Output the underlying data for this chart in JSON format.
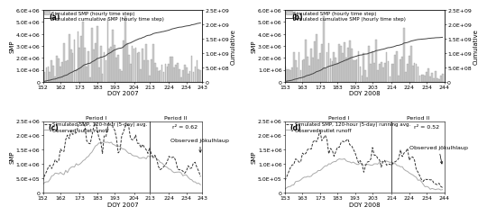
{
  "panel_a": {
    "label": "(a)",
    "doy_start": 152,
    "doy_end": 243,
    "xlabel": "DOY 2007",
    "ylim_left": [
      0,
      6000000.0
    ],
    "ylim_right": [
      0,
      2500000000.0
    ],
    "yticks_left": [
      0,
      1000000.0,
      2000000.0,
      3000000.0,
      4000000.0,
      5000000.0,
      6000000.0
    ],
    "yticks_right": [
      0,
      500000000.0,
      1000000000.0,
      1500000000.0,
      2000000000.0,
      2500000000.0
    ],
    "ytick_labels_right": [
      "0",
      "5.0E+08",
      "1.0E+09",
      "1.5E+09",
      "2.0E+09",
      "2.5E+09"
    ],
    "ytick_labels_left": [
      "0",
      "1.0E+06",
      "2.0E+06",
      "3.0E+06",
      "4.0E+06",
      "5.0E+06",
      "6.0E+06"
    ],
    "xticks": [
      152,
      162,
      173,
      183,
      193,
      204,
      213,
      224,
      234,
      243
    ],
    "bar_color": "#cccccc",
    "bar_edge_color": "#999999",
    "cumul_color": "#444444",
    "legend_bar": "Simulated SMP (hourly time step)",
    "legend_line": "Simulated cumulative SMP (hourly time step)"
  },
  "panel_b": {
    "label": "(b)",
    "doy_start": 153,
    "doy_end": 244,
    "xlabel": "DOY 2008",
    "ylim_left": [
      0,
      6000000.0
    ],
    "ylim_right": [
      0,
      2500000000.0
    ],
    "yticks_left": [
      0,
      1000000.0,
      2000000.0,
      3000000.0,
      4000000.0,
      5000000.0,
      6000000.0
    ],
    "yticks_right": [
      0,
      500000000.0,
      1000000000.0,
      1500000000.0,
      2000000000.0,
      2500000000.0
    ],
    "ytick_labels_right": [
      "0",
      "5.0E+08",
      "1.0E+09",
      "1.5E+09",
      "2.0E+09",
      "2.5E+09"
    ],
    "ytick_labels_left": [
      "0",
      "1.0E+06",
      "2.0E+06",
      "3.0E+06",
      "4.0E+06",
      "5.0E+06",
      "6.0E+06"
    ],
    "xticks": [
      153,
      163,
      173,
      183,
      193,
      203,
      214,
      224,
      234,
      244
    ],
    "bar_color": "#cccccc",
    "bar_edge_color": "#999999",
    "cumul_color": "#444444",
    "legend_bar": "Simulated SMP (hourly time step)",
    "legend_line": "Simulated cumulative SMP (hourly time step)"
  },
  "panel_c": {
    "label": "(c)",
    "doy_start": 152,
    "doy_end": 243,
    "xlabel": "DOY 2007",
    "ylim": [
      0,
      2500000.0
    ],
    "yticks": [
      0,
      500000.0,
      1000000.0,
      1500000.0,
      2000000.0,
      2500000.0
    ],
    "ytick_labels": [
      "0",
      "5.0E+05",
      "1.0E+06",
      "1.5E+06",
      "2.0E+06",
      "2.5E+06"
    ],
    "xticks": [
      152,
      162,
      173,
      183,
      193,
      204,
      213,
      224,
      234,
      243
    ],
    "period_split": 213,
    "period_I_label": "Period I",
    "period_II_label": "Period II",
    "r2_text": "r² = 0.62",
    "jokulhlaup_text": "Observed jökulhlaup",
    "jokulhlaup_doy": 243,
    "smp_color": "#333333",
    "runoff_color": "#aaaaaa",
    "legend_smp": "Simulated SMP, 120-hour (5-day) avg.",
    "legend_runoff": "Observed outlet runoff"
  },
  "panel_d": {
    "label": "(d)",
    "doy_start": 153,
    "doy_end": 244,
    "xlabel": "DOY 2008",
    "ylim": [
      0,
      2500000.0
    ],
    "yticks": [
      0,
      500000.0,
      1000000.0,
      1500000.0,
      2000000.0,
      2500000.0
    ],
    "ytick_labels": [
      "0",
      "5.0E+05",
      "1.0E+06",
      "1.5E+06",
      "2.0E+06",
      "2.5E+06"
    ],
    "xticks": [
      153,
      163,
      173,
      183,
      193,
      203,
      214,
      224,
      234,
      244
    ],
    "period_split": 214,
    "period_I_label": "Period I",
    "period_II_label": "Period II",
    "r2_text": "r² = 0.52",
    "jokulhlaup_text": "Observed jökulhlaup",
    "jokulhlaup_doy": 244,
    "smp_color": "#333333",
    "runoff_color": "#aaaaaa",
    "legend_smp": "Simulated SMP, 120-hour (5-day) running avg.",
    "legend_runoff": "Observed outlet runoff"
  },
  "ylabel_left_top": "SMP",
  "ylabel_right_top": "Cumulative",
  "ylabel_left_bottom": "SMP",
  "background_color": "#ffffff",
  "fontsize_label": 5.0,
  "fontsize_tick": 4.5,
  "fontsize_legend": 4.0,
  "fontsize_annot": 4.5
}
